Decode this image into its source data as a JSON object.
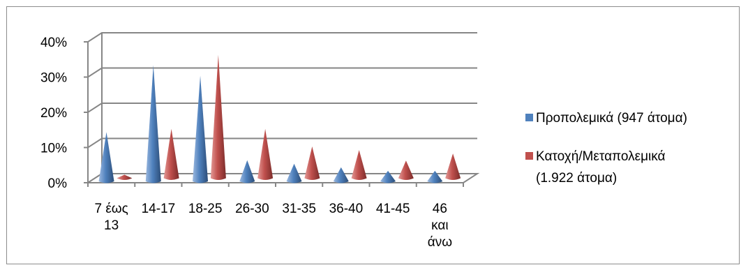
{
  "chart_data": {
    "type": "bar",
    "style": "3d-cone",
    "categories": [
      [
        "7 έως",
        "13"
      ],
      [
        "14-17"
      ],
      [
        "18-25"
      ],
      [
        "26-30"
      ],
      [
        "31-35"
      ],
      [
        "36-40"
      ],
      [
        "41-45"
      ],
      [
        "46",
        "και",
        "άνω"
      ]
    ],
    "y_ticks": [
      "0%",
      "10%",
      "20%",
      "30%",
      "40%"
    ],
    "ylim": [
      0,
      40
    ],
    "grid": true,
    "legend_position": "right",
    "series": [
      {
        "name": "Προπολεμικά (947 άτομα)",
        "legend_lines": [
          "Προπολεμικά (947 άτομα)"
        ],
        "color": "#4f81bd",
        "values": [
          14,
          33,
          30,
          6,
          5,
          4,
          3,
          3
        ]
      },
      {
        "name": "Κατοχή/Μεταπολεμικά (1.922 άτομα)",
        "legend_lines": [
          "Κατοχή/Μεταπολεμικά",
          "(1.922 άτομα)"
        ],
        "color": "#c0504d",
        "values": [
          1,
          14,
          35,
          14,
          9,
          8,
          5,
          7
        ]
      }
    ]
  }
}
